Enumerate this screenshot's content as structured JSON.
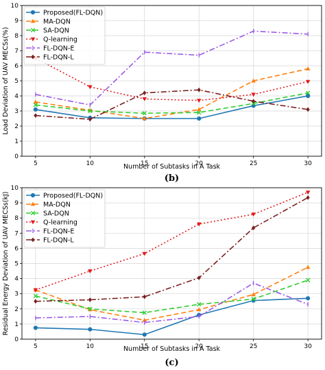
{
  "chart_data": [
    {
      "type": "line",
      "subfigure_label": "(b)",
      "xlabel": "Number of Subtasks in A Task",
      "ylabel": "Load Deviation of UAV MECSs(%)",
      "x": [
        5,
        10,
        15,
        20,
        25,
        30
      ],
      "xticks": [
        "5",
        "10",
        "15",
        "20",
        "25",
        "30"
      ],
      "ylim": [
        0,
        10
      ],
      "yticks": [
        "0",
        "1",
        "2",
        "3",
        "4",
        "5",
        "6",
        "7",
        "8",
        "9",
        "10"
      ],
      "grid": true,
      "legend_position": "top-left",
      "series": [
        {
          "name": "Proposed(FL-DQN)",
          "values": [
            3.1,
            2.55,
            2.5,
            2.5,
            3.35,
            4.0
          ],
          "color": "#1f77b4",
          "dash": "",
          "marker": "circle"
        },
        {
          "name": "MA-DQN",
          "values": [
            3.6,
            3.05,
            2.5,
            3.1,
            5.0,
            5.8
          ],
          "color": "#ff7f0e",
          "dash": "7,4",
          "marker": "triangle-up"
        },
        {
          "name": "SA-DQN",
          "values": [
            3.4,
            3.0,
            2.85,
            2.9,
            3.5,
            4.2
          ],
          "color": "#2ecc2e",
          "dash": "7,4",
          "marker": "x"
        },
        {
          "name": "Q-learning",
          "values": [
            6.5,
            4.6,
            3.8,
            3.7,
            4.1,
            4.95
          ],
          "color": "#e31a1c",
          "dash": "2,3",
          "marker": "triangle-down"
        },
        {
          "name": "FL-DQN-E",
          "values": [
            4.1,
            3.4,
            6.9,
            6.7,
            8.3,
            8.1
          ],
          "color": "#9b59e6",
          "dash": "8,3,2,3",
          "marker": "tick"
        },
        {
          "name": "FL-DQN-L",
          "values": [
            2.7,
            2.45,
            4.2,
            4.4,
            3.65,
            3.1
          ],
          "color": "#7b1f1f",
          "dash": "8,3,2,3",
          "marker": "diamond"
        }
      ]
    },
    {
      "type": "line",
      "subfigure_label": "(c)",
      "xlabel": "Number of Subtasks in A Task",
      "ylabel": "Residual Energy Deviation of UAV MECSs(kJ)",
      "x": [
        5,
        10,
        15,
        20,
        25,
        30
      ],
      "xticks": [
        "5",
        "10",
        "15",
        "20",
        "25",
        "30"
      ],
      "ylim": [
        0,
        10
      ],
      "yticks": [
        "0",
        "1",
        "2",
        "3",
        "4",
        "5",
        "6",
        "7",
        "8",
        "9",
        "10"
      ],
      "grid": true,
      "legend_position": "top-left",
      "series": [
        {
          "name": "Proposed(FL-DQN)",
          "values": [
            0.75,
            0.65,
            0.3,
            1.6,
            2.55,
            2.7
          ],
          "color": "#1f77b4",
          "dash": "",
          "marker": "circle"
        },
        {
          "name": "MA-DQN",
          "values": [
            3.25,
            1.95,
            1.25,
            1.95,
            2.95,
            4.75
          ],
          "color": "#ff7f0e",
          "dash": "7,4",
          "marker": "triangle-up"
        },
        {
          "name": "SA-DQN",
          "values": [
            2.85,
            2.0,
            1.75,
            2.3,
            2.65,
            3.9
          ],
          "color": "#2ecc2e",
          "dash": "7,4",
          "marker": "x"
        },
        {
          "name": "Q-learning",
          "values": [
            3.25,
            4.5,
            5.65,
            7.6,
            8.25,
            9.7
          ],
          "color": "#e31a1c",
          "dash": "2,3",
          "marker": "triangle-down"
        },
        {
          "name": "FL-DQN-E",
          "values": [
            1.4,
            1.5,
            1.1,
            1.5,
            3.7,
            2.3
          ],
          "color": "#9b59e6",
          "dash": "8,3,2,3",
          "marker": "tick"
        },
        {
          "name": "FL-DQN-L",
          "values": [
            2.5,
            2.6,
            2.8,
            4.05,
            7.35,
            9.35
          ],
          "color": "#7b1f1f",
          "dash": "8,3,2,3",
          "marker": "diamond"
        }
      ]
    }
  ]
}
